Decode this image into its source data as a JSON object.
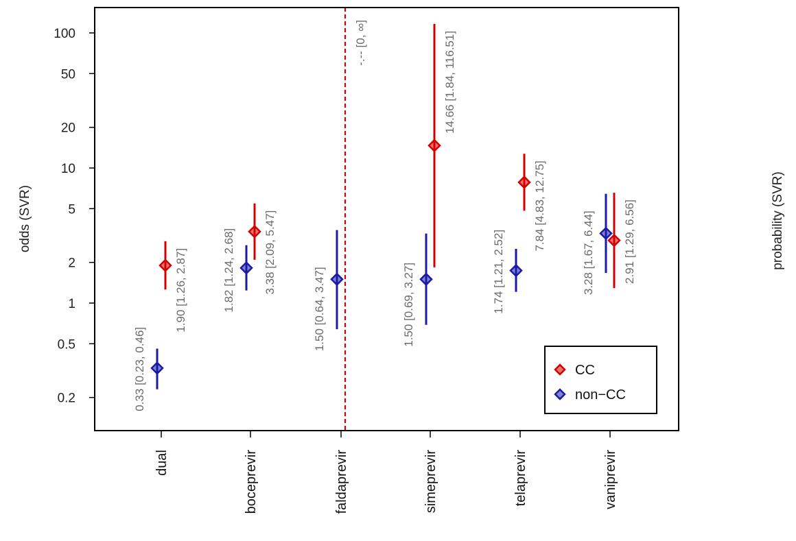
{
  "chart_data": {
    "type": "scatter",
    "ylabel": "odds (SVR)",
    "right_label": "probability (SVR)",
    "y_scale": "log",
    "ylim": [
      0.14,
      160
    ],
    "y_ticks": [
      "100",
      "50",
      "20",
      "10",
      "5",
      "2",
      "1",
      "0.5",
      "0.2"
    ],
    "categories": [
      "dual",
      "boceprevir",
      "faldaprevir",
      "simeprevir",
      "telaprevir",
      "vaniprevir"
    ],
    "reference_line": {
      "category": "faldaprevir",
      "color": "#cc0000",
      "style": "dashed"
    },
    "grid": false,
    "legend_position": "bottom-right",
    "series": [
      {
        "name": "CC",
        "color": "#d40000",
        "points": [
          {
            "category": "dual",
            "estimate": 1.9,
            "lower": 1.26,
            "upper": 2.87,
            "label": "1.90 [1.26, 2.87]"
          },
          {
            "category": "boceprevir",
            "estimate": 3.38,
            "lower": 2.09,
            "upper": 5.47,
            "label": "3.38 [2.09, 5.47]"
          },
          {
            "category": "faldaprevir",
            "estimate": null,
            "lower": 0,
            "upper": null,
            "label": "-.-- [0, ∞]"
          },
          {
            "category": "simeprevir",
            "estimate": 14.66,
            "lower": 1.84,
            "upper": 116.51,
            "label": "14.66 [1.84, 116.51]"
          },
          {
            "category": "telaprevir",
            "estimate": 7.84,
            "lower": 4.83,
            "upper": 12.75,
            "label": "7.84 [4.83, 12.75]"
          },
          {
            "category": "vaniprevir",
            "estimate": 2.91,
            "lower": 1.29,
            "upper": 6.56,
            "label": "2.91 [1.29, 6.56]"
          }
        ]
      },
      {
        "name": "non−CC",
        "color": "#1a1aa8",
        "points": [
          {
            "category": "dual",
            "estimate": 0.33,
            "lower": 0.23,
            "upper": 0.46,
            "label": "0.33 [0.23, 0.46]"
          },
          {
            "category": "boceprevir",
            "estimate": 1.82,
            "lower": 1.24,
            "upper": 2.68,
            "label": "1.82 [1.24, 2.68]"
          },
          {
            "category": "faldaprevir",
            "estimate": 1.5,
            "lower": 0.64,
            "upper": 3.47,
            "label": "1.50 [0.64, 3.47]"
          },
          {
            "category": "simeprevir",
            "estimate": 1.5,
            "lower": 0.69,
            "upper": 3.27,
            "label": "1.50 [0.69, 3.27]"
          },
          {
            "category": "telaprevir",
            "estimate": 1.74,
            "lower": 1.21,
            "upper": 2.52,
            "label": "1.74 [1.21, 2.52]"
          },
          {
            "category": "vaniprevir",
            "estimate": 3.28,
            "lower": 1.67,
            "upper": 6.44,
            "label": "3.28 [1.67, 6.44]"
          }
        ]
      }
    ]
  }
}
